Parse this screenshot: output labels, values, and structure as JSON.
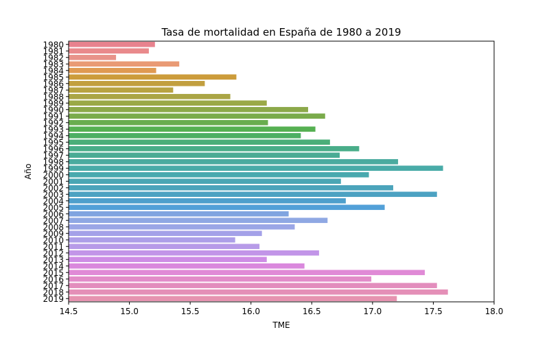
{
  "chart_data": {
    "type": "bar",
    "orientation": "horizontal",
    "title": "Tasa de mortalidad en España de 1980 a 2019",
    "xlabel": "TME",
    "ylabel": "Año",
    "xlim": [
      14.5,
      18.0
    ],
    "xticks": [
      "14.5",
      "15.0",
      "15.5",
      "16.0",
      "16.5",
      "17.0",
      "17.5",
      "18.0"
    ],
    "grid": false,
    "categories": [
      "1980",
      "1981",
      "1982",
      "1983",
      "1984",
      "1985",
      "1986",
      "1987",
      "1988",
      "1989",
      "1990",
      "1991",
      "1992",
      "1993",
      "1994",
      "1995",
      "1996",
      "1997",
      "1998",
      "1999",
      "2000",
      "2001",
      "2002",
      "2003",
      "2004",
      "2005",
      "2006",
      "2007",
      "2008",
      "2009",
      "2010",
      "2011",
      "2012",
      "2013",
      "2014",
      "2015",
      "2016",
      "2017",
      "2018",
      "2019"
    ],
    "values": [
      15.21,
      15.16,
      14.89,
      15.41,
      15.22,
      15.88,
      15.62,
      15.36,
      15.83,
      16.13,
      16.47,
      16.61,
      16.14,
      16.53,
      16.41,
      16.65,
      16.89,
      16.73,
      17.21,
      17.58,
      16.97,
      16.74,
      17.17,
      17.53,
      16.78,
      17.1,
      16.31,
      16.63,
      16.36,
      16.09,
      15.87,
      16.07,
      16.56,
      16.13,
      16.44,
      17.43,
      16.99,
      17.53,
      17.62,
      17.2
    ],
    "colors": [
      "#e8828e",
      "#e98a8c",
      "#e8938a",
      "#e99a74",
      "#e09a52",
      "#cc9c3b",
      "#c29f3f",
      "#b8a342",
      "#aaa545",
      "#9aa947",
      "#8ca94a",
      "#7aab4b",
      "#69ad4f",
      "#56b052",
      "#4daf63",
      "#4aae79",
      "#49ad89",
      "#4aab94",
      "#4aab9f",
      "#49aba8",
      "#49a9ae",
      "#4aa6b4",
      "#4ba4bb",
      "#4ca2c2",
      "#4e9fcc",
      "#52a0d8",
      "#80a4e0",
      "#8fa8e3",
      "#9ba6e6",
      "#a4a1e8",
      "#ad9fe8",
      "#b79be8",
      "#c295e8",
      "#ce8de5",
      "#da88dd",
      "#e08ad6",
      "#e28cc8",
      "#e38dbd",
      "#e48fb7",
      "#e693b0"
    ]
  }
}
